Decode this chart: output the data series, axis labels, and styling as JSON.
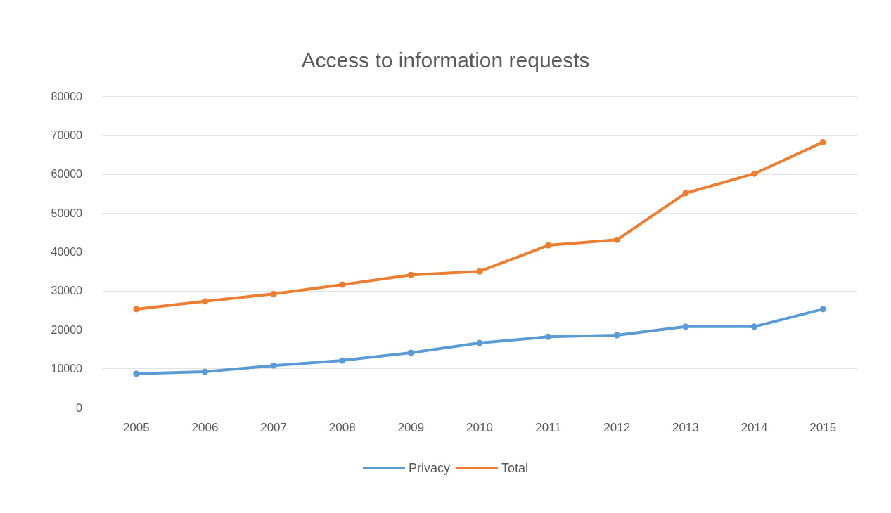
{
  "chart_data": {
    "type": "line",
    "title": "Access to information requests",
    "categories": [
      "2005",
      "2006",
      "2007",
      "2008",
      "2009",
      "2010",
      "2011",
      "2012",
      "2013",
      "2014",
      "2015"
    ],
    "series": [
      {
        "name": "Privacy",
        "color": "#5b9bd5",
        "values": [
          8700,
          9200,
          10800,
          12100,
          14100,
          16600,
          18200,
          18600,
          20800,
          20800,
          25300
        ]
      },
      {
        "name": "Total",
        "color": "#ed7d31",
        "values": [
          25300,
          27300,
          29200,
          31600,
          34100,
          35000,
          41700,
          43100,
          55100,
          60100,
          68200
        ]
      }
    ],
    "ylim": [
      0,
      80000
    ],
    "yticks": [
      0,
      10000,
      20000,
      30000,
      40000,
      50000,
      60000,
      70000,
      80000
    ],
    "grid": "y",
    "legend": "bottom",
    "marker": "circle",
    "line_style": "solid"
  }
}
